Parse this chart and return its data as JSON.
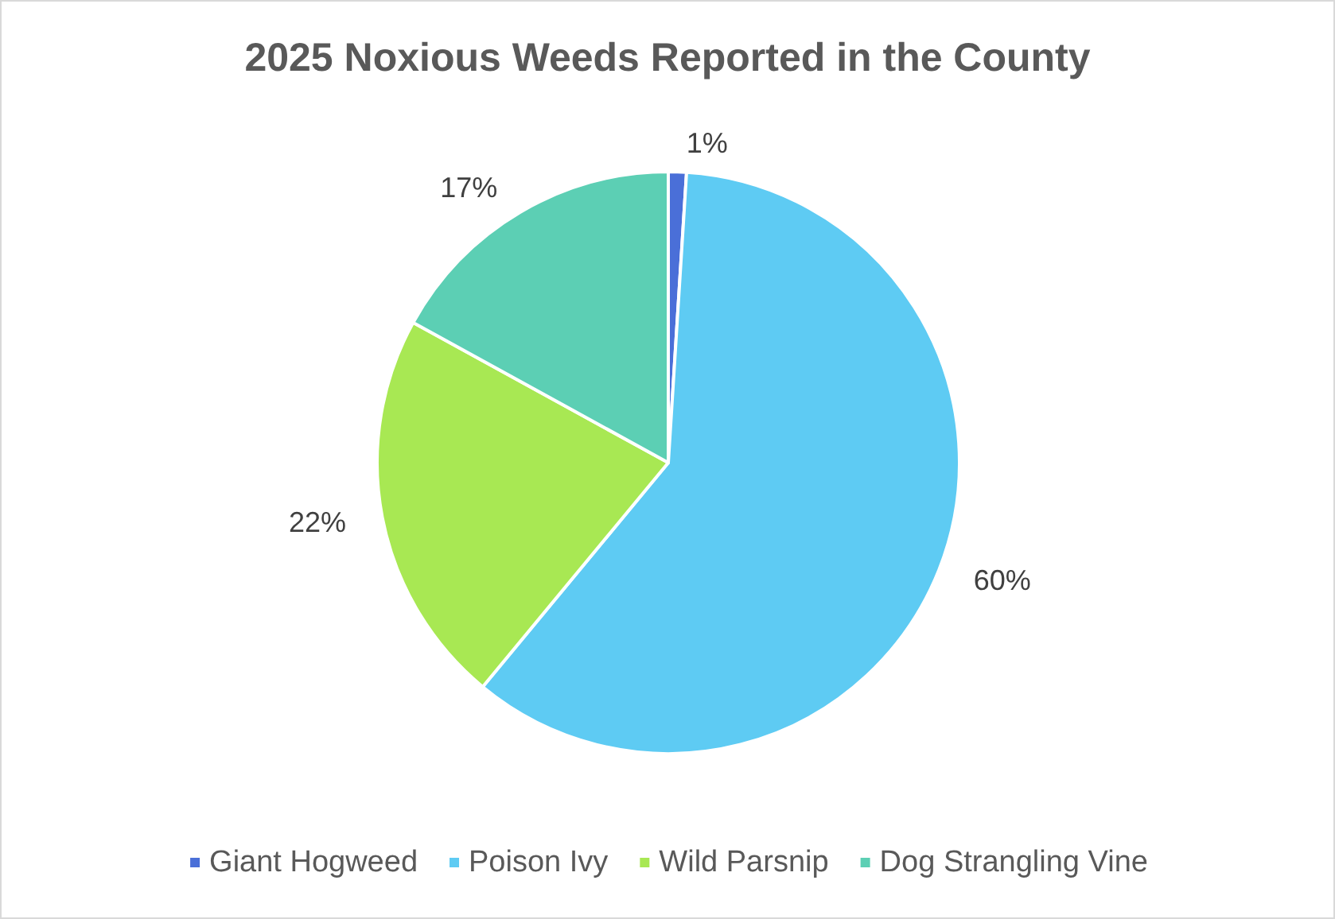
{
  "chart_data": {
    "type": "pie",
    "title": "2025 Noxious Weeds Reported in the County",
    "categories": [
      "Giant Hogweed",
      "Poison Ivy",
      "Wild Parsnip",
      "Dog Strangling Vine"
    ],
    "values": [
      1,
      60,
      22,
      17
    ],
    "colors": [
      "#4a6fd8",
      "#5ecbf3",
      "#a8e853",
      "#5ccfb4"
    ],
    "value_labels": [
      "1%",
      "60%",
      "22%",
      "17%"
    ],
    "legend": "bottom"
  }
}
